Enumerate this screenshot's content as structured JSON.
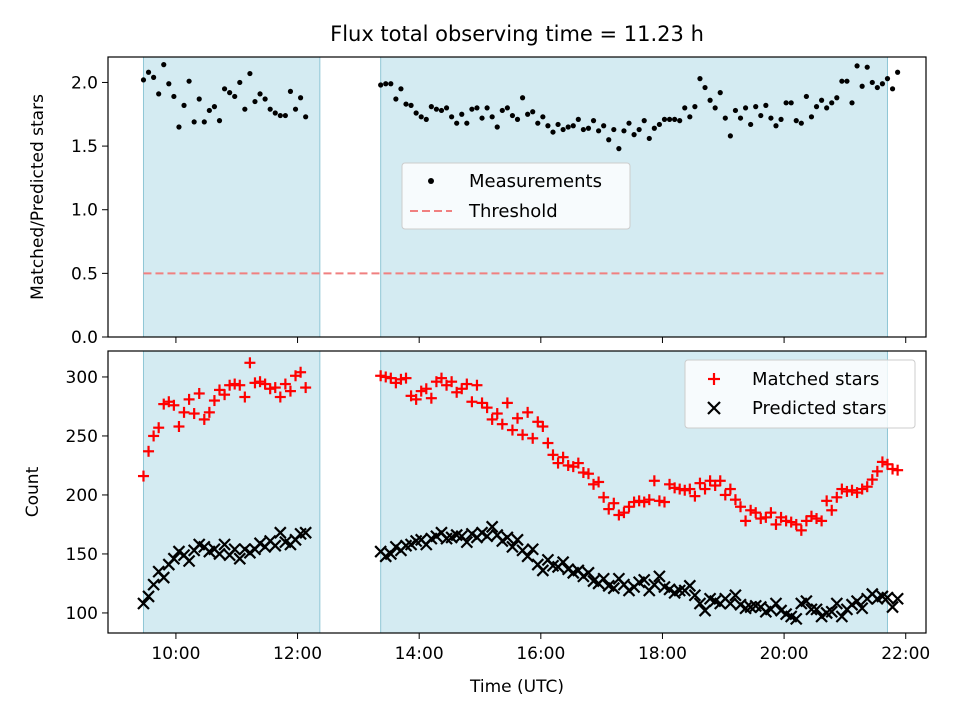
{
  "title": "Flux total observing time = 11.23 h",
  "colors": {
    "shade": "#add8e6",
    "measurement": "#000000",
    "threshold": "#f08080",
    "matched": "#ff0000",
    "predicted": "#000000"
  },
  "chart_data": [
    {
      "type": "scatter",
      "ylabel": "Matched/Predicted stars",
      "xlabel": "",
      "ylim": [
        0.0,
        2.2
      ],
      "yticks": [
        "0.0",
        "0.5",
        "1.0",
        "1.5",
        "2.0"
      ],
      "legend": {
        "placement": "center",
        "entries": [
          "Measurements",
          "Threshold"
        ]
      },
      "shaded_intervals": [
        [
          "09:28",
          "12:22"
        ],
        [
          "13:22",
          "21:42"
        ]
      ],
      "threshold": {
        "name": "Threshold",
        "value": 0.5,
        "x_range": [
          "09:28",
          "21:42"
        ]
      },
      "series": [
        {
          "name": "Measurements",
          "x_start": "09:28",
          "x_step_minutes": 5,
          "segments": [
            {
              "start": "09:28",
              "values": [
                2.02,
                2.08,
                2.04,
                1.91,
                2.14,
                1.99,
                1.89,
                1.65,
                1.82,
                2.01,
                1.69,
                1.87,
                1.69,
                1.78,
                1.81,
                1.7,
                1.95,
                1.92,
                1.89,
                2.0,
                1.79,
                2.07,
                1.85,
                1.91,
                1.87,
                1.79,
                1.76,
                1.74,
                1.74,
                1.93,
                1.79,
                1.88,
                1.73
              ]
            },
            {
              "start": "13:22",
              "values": [
                1.98,
                1.99,
                1.99,
                1.87,
                1.95,
                1.83,
                1.82,
                1.76,
                1.73,
                1.71,
                1.81,
                1.79,
                1.78,
                1.8,
                1.73,
                1.68,
                1.75,
                1.68,
                1.79,
                1.8,
                1.72,
                1.8,
                1.73,
                1.65,
                1.78,
                1.8,
                1.74,
                1.71,
                1.88,
                1.75,
                1.77,
                1.68,
                1.73,
                1.66,
                1.61,
                1.67,
                1.63,
                1.65,
                1.66,
                1.71,
                1.63,
                1.64,
                1.7,
                1.62,
                1.66,
                1.55,
                1.63,
                1.48,
                1.62,
                1.68,
                1.59,
                1.63,
                1.7,
                1.56,
                1.64,
                1.67,
                1.71,
                1.71,
                1.71,
                1.7,
                1.8,
                1.73,
                1.81,
                2.03,
                1.96,
                1.86,
                1.8,
                1.92,
                1.72,
                1.58,
                1.78,
                1.72,
                1.8,
                1.67,
                1.81,
                1.74,
                1.82,
                1.72,
                1.66,
                1.71,
                1.84,
                1.84,
                1.7,
                1.68,
                1.89,
                1.73,
                1.81,
                1.86,
                1.8,
                1.84,
                1.88,
                2.01,
                2.01,
                1.84,
                2.13,
                1.97,
                2.12,
                2.0,
                1.96,
                1.99,
                2.03,
                1.95,
                2.08
              ]
            }
          ]
        }
      ]
    },
    {
      "type": "scatter",
      "ylabel": "Count",
      "xlabel": "Time (UTC)",
      "ylim": [
        83,
        322
      ],
      "yticks": [
        "100",
        "150",
        "200",
        "250",
        "300"
      ],
      "xlim": [
        "08:53",
        "22:20"
      ],
      "xticks": [
        "10:00",
        "12:00",
        "14:00",
        "16:00",
        "18:00",
        "20:00",
        "22:00"
      ],
      "legend": {
        "placement": "top-right",
        "entries": [
          "Matched stars",
          "Predicted stars"
        ]
      },
      "shaded_intervals": [
        [
          "09:28",
          "12:22"
        ],
        [
          "13:22",
          "21:42"
        ]
      ],
      "series": [
        {
          "name": "Matched stars",
          "marker": "+",
          "segments": [
            {
              "start": "09:28",
              "values": [
                216,
                237,
                250,
                257,
                277,
                279,
                276,
                258,
                270,
                281,
                269,
                286,
                264,
                270,
                280,
                289,
                285,
                293,
                294,
                293,
                283,
                312,
                295,
                296,
                294,
                290,
                291,
                283,
                294,
                288,
                301,
                304,
                291
              ]
            },
            {
              "start": "13:22",
              "values": [
                301,
                300,
                299,
                295,
                298,
                299,
                284,
                281,
                288,
                290,
                282,
                296,
                299,
                293,
                296,
                287,
                290,
                294,
                279,
                293,
                278,
                274,
                264,
                269,
                260,
                278,
                255,
                265,
                251,
                270,
                248,
                262,
                258,
                244,
                234,
                227,
                232,
                225,
                224,
                227,
                219,
                218,
                209,
                211,
                198,
                188,
                193,
                183,
                185,
                190,
                194,
                195,
                194,
                196,
                212,
                195,
                194,
                209,
                206,
                205,
                204,
                205,
                199,
                210,
                205,
                212,
                208,
                212,
                200,
                205,
                196,
                190,
                178,
                187,
                185,
                180,
                181,
                185,
                175,
                181,
                178,
                177,
                175,
                170,
                178,
                182,
                180,
                178,
                195,
                187,
                198,
                205,
                203,
                204,
                202,
                205,
                207,
                213,
                220,
                228,
                226,
                222,
                221
              ]
            }
          ]
        },
        {
          "name": "Predicted stars",
          "marker": "x",
          "segments": [
            {
              "start": "09:28",
              "values": [
                108,
                114,
                124,
                135,
                130,
                141,
                146,
                152,
                149,
                144,
                153,
                158,
                156,
                152,
                154,
                150,
                158,
                149,
                154,
                146,
                154,
                151,
                154,
                159,
                156,
                161,
                157,
                168,
                160,
                158,
                162,
                167,
                168
              ]
            },
            {
              "start": "13:22",
              "values": [
                152,
                148,
                150,
                156,
                153,
                157,
                158,
                161,
                162,
                158,
                163,
                165,
                168,
                163,
                164,
                166,
                165,
                160,
                167,
                164,
                168,
                165,
                173,
                166,
                161,
                164,
                156,
                162,
                153,
                148,
                154,
                141,
                136,
                145,
                140,
                139,
                143,
                137,
                134,
                136,
                131,
                134,
                127,
                125,
                129,
                123,
                121,
                129,
                124,
                119,
                122,
                126,
                128,
                119,
                124,
                131,
                122,
                120,
                117,
                119,
                119,
                123,
                115,
                108,
                102,
                112,
                110,
                108,
                112,
                108,
                115,
                107,
                104,
                105,
                106,
                105,
                101,
                103,
                108,
                102,
                99,
                97,
                95,
                108,
                110,
                103,
                103,
                97,
                100,
                101,
                108,
                97,
                103,
                107,
                110,
                104,
                112,
                116,
                112,
                114,
                113,
                105,
                112
              ]
            }
          ]
        }
      ]
    }
  ]
}
